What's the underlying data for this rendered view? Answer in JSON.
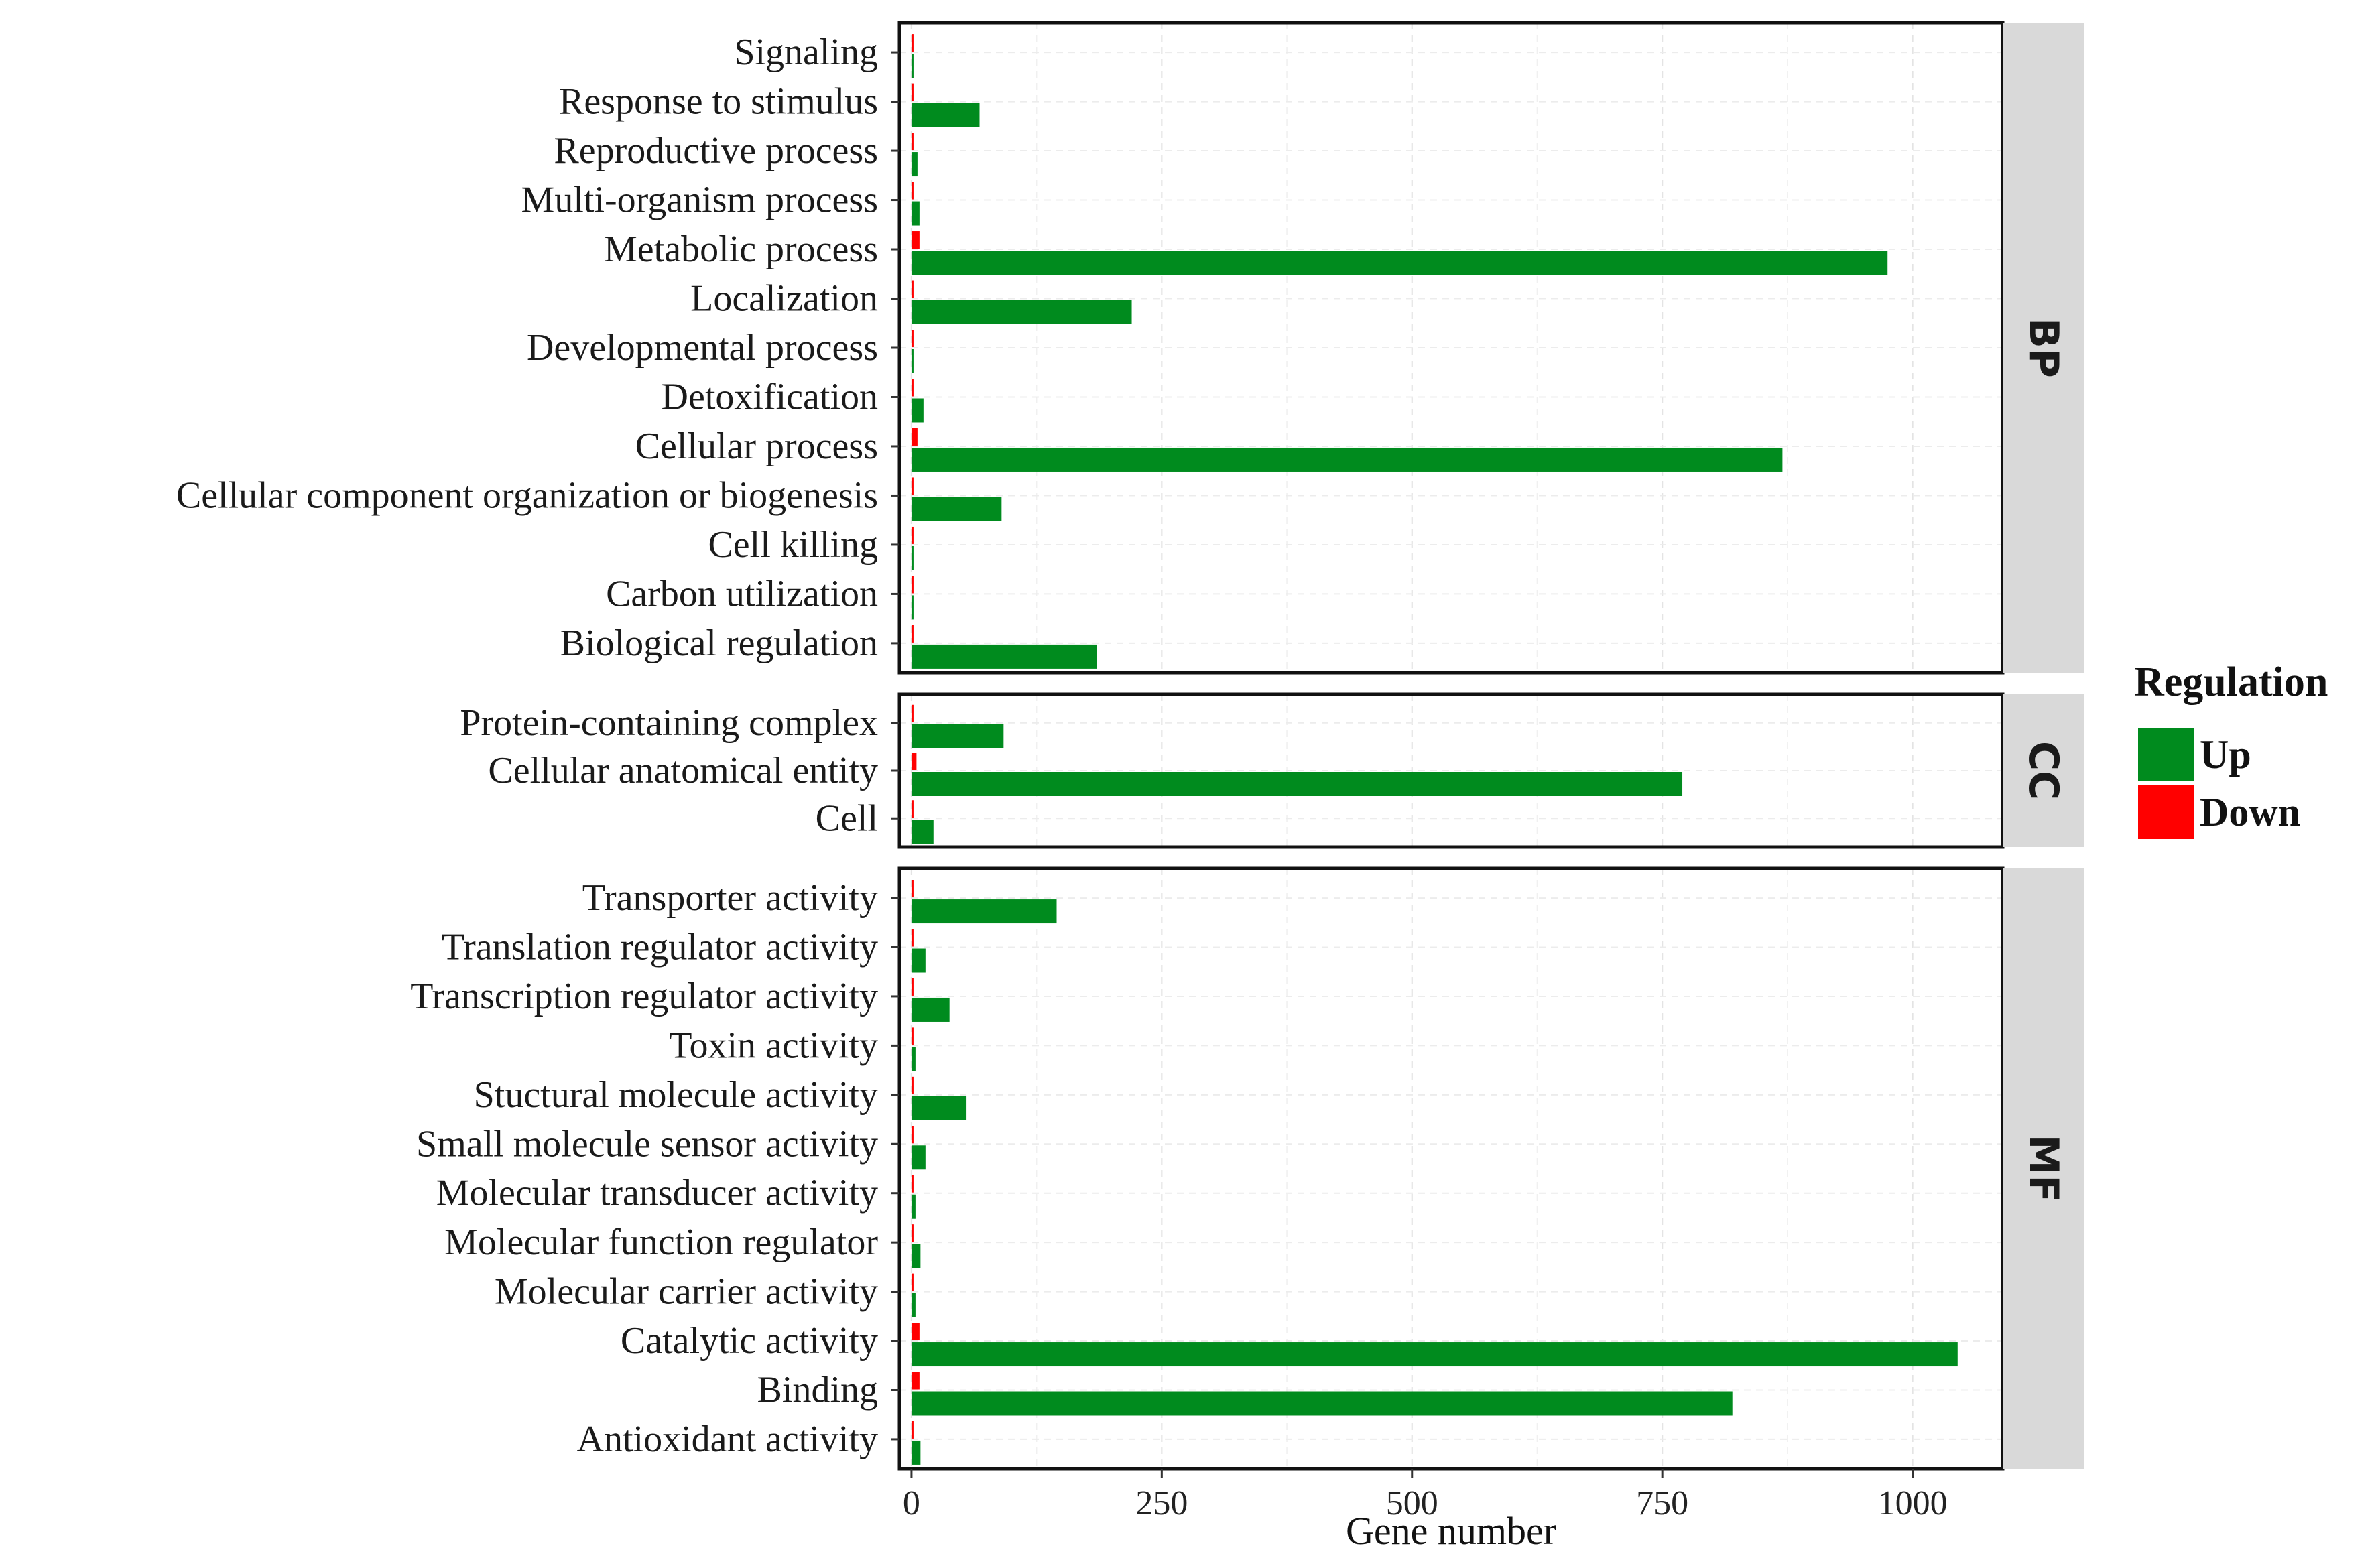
{
  "chart_data": {
    "type": "bar",
    "orientation": "horizontal",
    "xlabel": "Gene number",
    "xlim": [
      -12,
      1090
    ],
    "x_ticks": [
      0,
      250,
      500,
      750,
      1000
    ],
    "x_tick_labels": [
      "0",
      "250",
      "500",
      "750",
      "1000"
    ],
    "grid": true,
    "legend": {
      "title": "Regulation",
      "position": "right",
      "entries": [
        {
          "name": "Up",
          "color": "#008B1E"
        },
        {
          "name": "Down",
          "color": "#FF0000"
        }
      ]
    },
    "colors": {
      "up": "#008B1E",
      "down": "#FF0000"
    },
    "facets": [
      {
        "name": "BP",
        "categories": [
          "Signaling",
          "Response to stimulus",
          "Reproductive process",
          "Multi-organism process",
          "Metabolic process",
          "Localization",
          "Developmental process",
          "Detoxification",
          "Cellular process",
          "Cellular component organization or biogenesis",
          "Cell killing",
          "Carbon utilization",
          "Biological regulation"
        ],
        "up": [
          2,
          68,
          6,
          8,
          975,
          220,
          2,
          12,
          870,
          90,
          1,
          1,
          185
        ],
        "down": [
          1,
          1,
          1,
          2,
          8,
          2,
          1,
          1,
          6,
          1,
          1,
          1,
          2
        ]
      },
      {
        "name": "CC",
        "categories": [
          "Protein-containing complex",
          "Cellular anatomical entity",
          "Cell"
        ],
        "up": [
          92,
          770,
          22
        ],
        "down": [
          1,
          5,
          1
        ]
      },
      {
        "name": "MF",
        "categories": [
          "Transporter activity",
          "Translation regulator activity",
          "Transcription regulator activity",
          "Toxin activity",
          "Stuctural molecule activity",
          "Small molecule sensor activity",
          "Molecular transducer activity",
          "Molecular function regulator",
          "Molecular carrier activity",
          "Catalytic activity",
          "Binding",
          "Antioxidant activity"
        ],
        "up": [
          145,
          14,
          38,
          4,
          55,
          14,
          4,
          9,
          4,
          1045,
          820,
          9
        ],
        "down": [
          1,
          1,
          1,
          1,
          1,
          1,
          1,
          1,
          1,
          8,
          8,
          1
        ]
      }
    ]
  }
}
